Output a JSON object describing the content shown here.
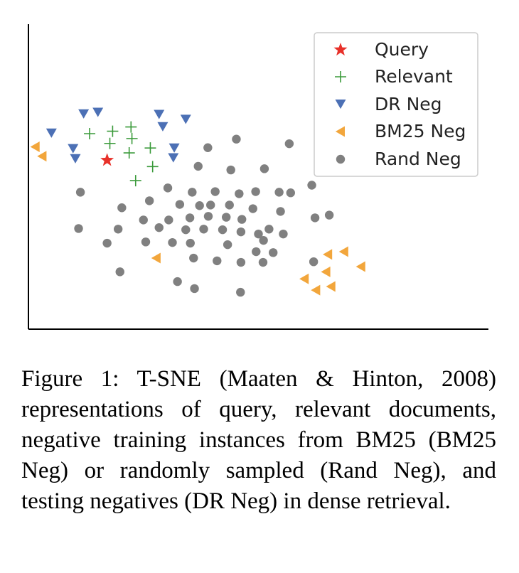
{
  "chart_data": {
    "type": "scatter",
    "title": "",
    "xlabel": "",
    "ylabel": "",
    "xlim": [
      0,
      10
    ],
    "ylim": [
      0,
      10
    ],
    "grid": false,
    "ticks": false,
    "legend": {
      "placement": "top-right"
    },
    "series": [
      {
        "name": "Query",
        "marker": "star",
        "color": "#e8312a",
        "points": [
          [
            1.71,
            5.54
          ]
        ]
      },
      {
        "name": "Relevant",
        "marker": "plus",
        "color": "#3a9a3a",
        "points": [
          [
            1.33,
            6.41
          ],
          [
            1.83,
            6.49
          ],
          [
            2.23,
            6.63
          ],
          [
            1.77,
            6.09
          ],
          [
            2.25,
            6.25
          ],
          [
            2.65,
            5.94
          ],
          [
            2.19,
            5.78
          ],
          [
            2.7,
            5.33
          ],
          [
            2.33,
            4.87
          ]
        ]
      },
      {
        "name": "DR Neg",
        "marker": "triangle-down",
        "color": "#4c70b5",
        "points": [
          [
            0.5,
            6.44
          ],
          [
            1.2,
            7.07
          ],
          [
            1.51,
            7.12
          ],
          [
            2.84,
            7.05
          ],
          [
            3.42,
            6.89
          ],
          [
            2.92,
            6.65
          ],
          [
            0.97,
            5.93
          ],
          [
            1.02,
            5.6
          ],
          [
            3.17,
            5.95
          ],
          [
            3.15,
            5.63
          ]
        ]
      },
      {
        "name": "BM25 Neg",
        "marker": "triangle-left",
        "color": "#f2a63c",
        "points": [
          [
            0.15,
            5.98
          ],
          [
            0.3,
            5.67
          ],
          [
            2.78,
            2.33
          ],
          [
            6.51,
            2.45
          ],
          [
            6.86,
            2.54
          ],
          [
            6.47,
            1.88
          ],
          [
            7.23,
            2.05
          ],
          [
            6.0,
            1.65
          ],
          [
            6.58,
            1.4
          ],
          [
            6.25,
            1.28
          ]
        ]
      },
      {
        "name": "Rand Neg",
        "marker": "circle",
        "color": "#808080",
        "points": [
          [
            4.52,
            6.23
          ],
          [
            3.9,
            5.95
          ],
          [
            5.67,
            6.08
          ],
          [
            3.69,
            5.34
          ],
          [
            4.4,
            5.22
          ],
          [
            5.13,
            5.26
          ],
          [
            1.13,
            4.49
          ],
          [
            3.03,
            4.63
          ],
          [
            3.56,
            4.49
          ],
          [
            4.06,
            4.51
          ],
          [
            4.58,
            4.44
          ],
          [
            4.94,
            4.51
          ],
          [
            5.7,
            4.47
          ],
          [
            6.16,
            4.72
          ],
          [
            5.45,
            4.49
          ],
          [
            2.63,
            4.21
          ],
          [
            3.29,
            4.09
          ],
          [
            3.72,
            4.05
          ],
          [
            3.96,
            4.07
          ],
          [
            4.37,
            4.07
          ],
          [
            4.88,
            3.95
          ],
          [
            2.03,
            3.98
          ],
          [
            2.5,
            3.58
          ],
          [
            3.05,
            3.58
          ],
          [
            3.51,
            3.65
          ],
          [
            3.91,
            3.7
          ],
          [
            4.3,
            3.67
          ],
          [
            4.64,
            3.6
          ],
          [
            5.48,
            3.86
          ],
          [
            6.23,
            3.65
          ],
          [
            6.54,
            3.74
          ],
          [
            1.09,
            3.3
          ],
          [
            1.95,
            3.28
          ],
          [
            2.84,
            3.33
          ],
          [
            3.42,
            3.26
          ],
          [
            3.81,
            3.28
          ],
          [
            4.22,
            3.26
          ],
          [
            4.62,
            3.19
          ],
          [
            5.0,
            3.12
          ],
          [
            5.23,
            3.28
          ],
          [
            5.54,
            3.12
          ],
          [
            1.71,
            2.82
          ],
          [
            2.55,
            2.86
          ],
          [
            3.13,
            2.84
          ],
          [
            3.52,
            2.82
          ],
          [
            4.33,
            2.77
          ],
          [
            5.11,
            2.91
          ],
          [
            4.95,
            2.54
          ],
          [
            5.32,
            2.51
          ],
          [
            3.59,
            2.33
          ],
          [
            4.1,
            2.24
          ],
          [
            4.62,
            2.19
          ],
          [
            5.1,
            2.19
          ],
          [
            6.2,
            2.21
          ],
          [
            1.99,
            1.88
          ],
          [
            3.24,
            1.56
          ],
          [
            3.61,
            1.33
          ],
          [
            4.61,
            1.21
          ]
        ]
      }
    ]
  },
  "caption": "Figure 1:  T-SNE (Maaten & Hinton, 2008) representations of query, relevant documents, negative training instances from BM25 (BM25 Neg) or randomly sampled (Rand Neg), and testing negatives (DR Neg) in dense retrieval."
}
